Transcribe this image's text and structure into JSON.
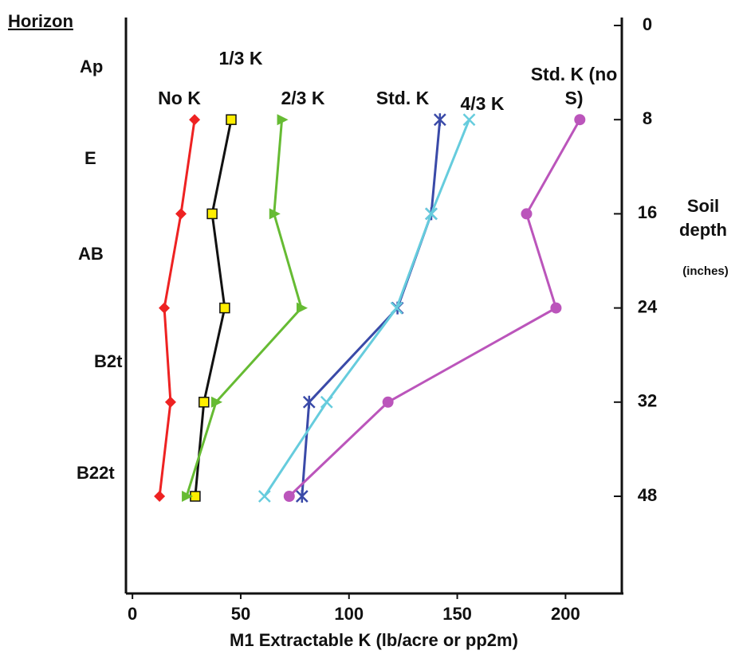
{
  "chart_data": {
    "type": "line",
    "title": "Horizon",
    "horizons": [
      "Ap",
      "E",
      "AB",
      "B2t",
      "B22t"
    ],
    "xlabel": "M1 Extractable K (lb/acre or pp2m)",
    "ylabel": "Soil depth",
    "ylabel_unit": "(inches)",
    "categories": [
      "0",
      "8",
      "16",
      "24",
      "32",
      "48",
      null
    ],
    "xlim": [
      -3,
      226
    ],
    "xticks": [
      0,
      50,
      100,
      150,
      200
    ],
    "series": [
      {
        "name": "No K",
        "color": "#ee2222",
        "marker": "diamond",
        "marker_color": "#ee2222",
        "values": [
          null,
          28.7,
          22.4,
          14.7,
          17.6,
          12.5,
          null
        ]
      },
      {
        "name": "1/3 K",
        "color": "#111111",
        "marker": "square",
        "marker_color": "#ffee00",
        "values": [
          null,
          45.6,
          36.8,
          42.6,
          33,
          29,
          null
        ]
      },
      {
        "name": "2/3 K",
        "color": "#66bb33",
        "marker": "triangle",
        "marker_color": "#66bb33",
        "values": [
          null,
          69,
          65.4,
          78,
          38.6,
          25,
          null
        ]
      },
      {
        "name": "Std. K",
        "color": "#3a4aa8",
        "marker": "asterisk",
        "marker_color": "#3a4aa8",
        "values": [
          null,
          142,
          138,
          122.4,
          81.6,
          78.3,
          null
        ]
      },
      {
        "name": "4/3 K",
        "color": "#66ccdd",
        "marker": "cross",
        "marker_color": "#66ccdd",
        "values": [
          null,
          155.5,
          138,
          122,
          89.7,
          61,
          null
        ]
      },
      {
        "name": "Std. K (no S)",
        "color": "#bb55bb",
        "marker": "circle",
        "marker_color": "#bb55bb",
        "values": [
          null,
          206.6,
          182,
          195.6,
          118,
          72.4,
          null
        ]
      }
    ]
  }
}
